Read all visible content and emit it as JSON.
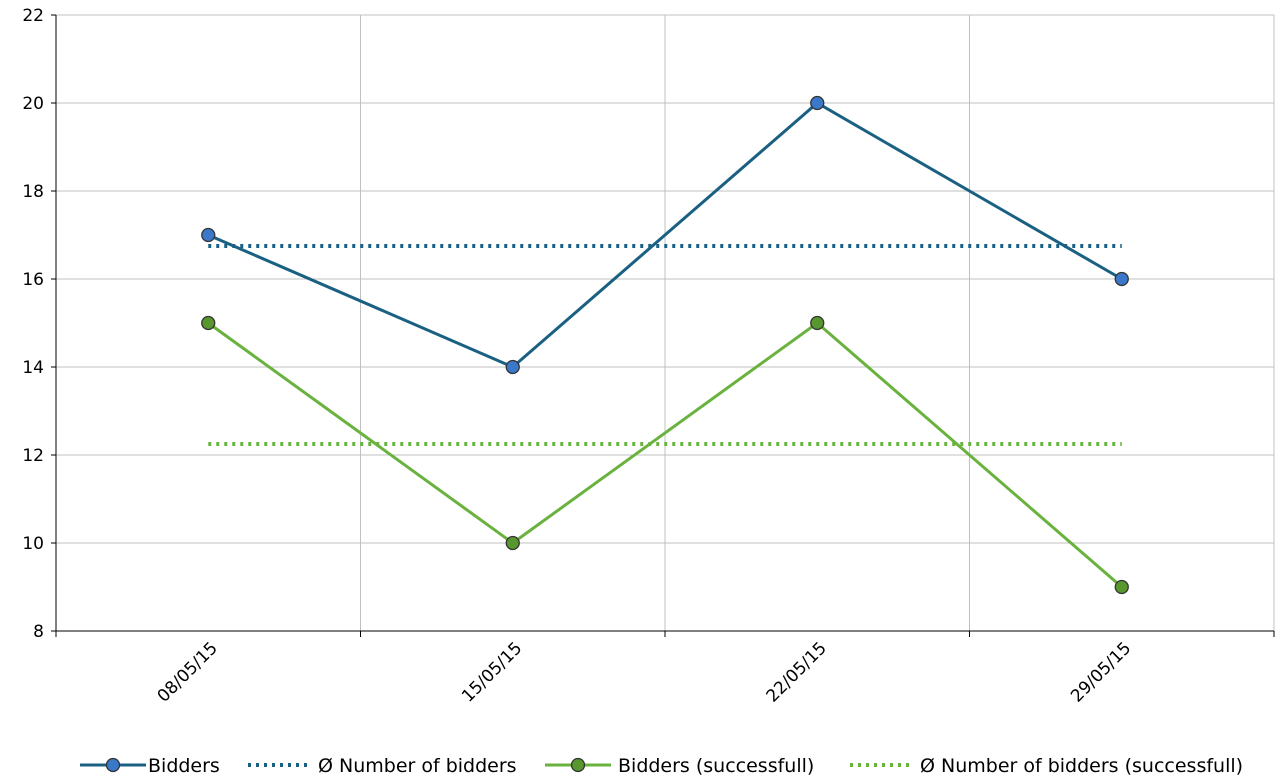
{
  "chart_data": {
    "type": "line",
    "categories": [
      "08/05/15",
      "15/05/15",
      "22/05/15",
      "29/05/15"
    ],
    "ylim": [
      8,
      22
    ],
    "yticks": [
      8,
      10,
      12,
      14,
      16,
      18,
      20,
      22
    ],
    "grid": true,
    "legend_position": "bottom",
    "series": [
      {
        "name": "Bidders",
        "values": [
          17,
          14,
          20,
          16
        ],
        "color": "#1a6082",
        "marker_color": "#3a78c9",
        "style": "solid",
        "marker": true
      },
      {
        "name": "Ø Number of bidders",
        "values": [
          16.75,
          16.75,
          16.75,
          16.75
        ],
        "color": "#1a6082",
        "style": "dotted",
        "marker": false
      },
      {
        "name": "Bidders (successfull)",
        "values": [
          15,
          10,
          15,
          9
        ],
        "color": "#6ab23e",
        "marker_color": "#58962e",
        "style": "solid",
        "marker": true
      },
      {
        "name": "Ø Number of bidders (successfull)",
        "values": [
          12.25,
          12.25,
          12.25,
          12.25
        ],
        "color": "#6ab23e",
        "style": "dotted",
        "marker": false
      }
    ]
  }
}
